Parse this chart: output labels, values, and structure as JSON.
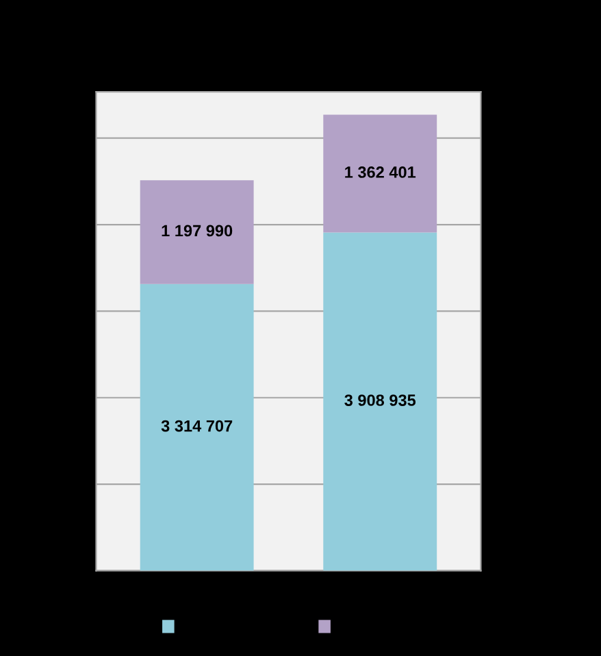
{
  "chart_data": {
    "type": "bar",
    "stacked": true,
    "categories": [
      null,
      null
    ],
    "series": [
      {
        "color": "#92cddc",
        "values": [
          3314707,
          3908935
        ]
      },
      {
        "color": "#b3a2c7",
        "values": [
          1197990,
          1362401
        ]
      }
    ],
    "data_labels": true,
    "tick_labels": false,
    "grid": "y"
  }
}
